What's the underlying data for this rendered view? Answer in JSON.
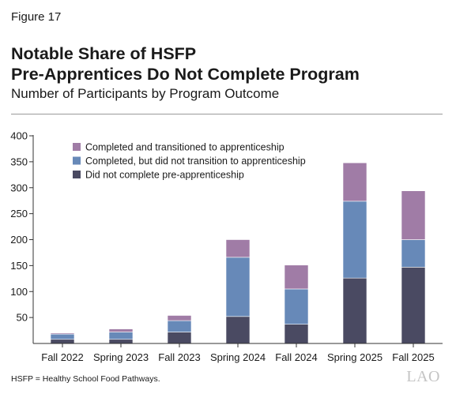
{
  "figure_label": "Figure 17",
  "title_line1": "Notable Share of HSFP",
  "title_line2": "Pre-Apprentices Do Not Complete Program",
  "subtitle": "Number of Participants by Program Outcome",
  "note": "HSFP = Healthy School Food Pathways.",
  "logo": "LAO",
  "colors": {
    "completed_transitioned": "#a07ca6",
    "completed_not_transitioned": "#6789b8",
    "did_not_complete": "#4a4a62",
    "axis": "#333333"
  },
  "chart_data": {
    "type": "bar",
    "stacked": true,
    "title": "Number of Participants by Program Outcome",
    "categories": [
      "Fall 2022",
      "Spring 2023",
      "Fall 2023",
      "Spring 2024",
      "Fall 2024",
      "Spring 2025",
      "Fall 2025"
    ],
    "series": [
      {
        "name": "Did not complete pre-apprenticeship",
        "color": "#4a4a62",
        "values": [
          8,
          8,
          22,
          52,
          37,
          126,
          147
        ]
      },
      {
        "name": "Completed, but did not transition to apprenticeship",
        "color": "#6789b8",
        "values": [
          10,
          14,
          22,
          114,
          68,
          148,
          53
        ]
      },
      {
        "name": "Completed and transitioned to apprenticeship",
        "color": "#a07ca6",
        "values": [
          2,
          6,
          10,
          34,
          46,
          74,
          94
        ]
      }
    ],
    "legend_order": [
      2,
      1,
      0
    ],
    "legend_position": "top-left",
    "ylim": [
      0,
      400
    ],
    "yticks": [
      50,
      100,
      150,
      200,
      250,
      300,
      350,
      400
    ],
    "grid": false
  }
}
